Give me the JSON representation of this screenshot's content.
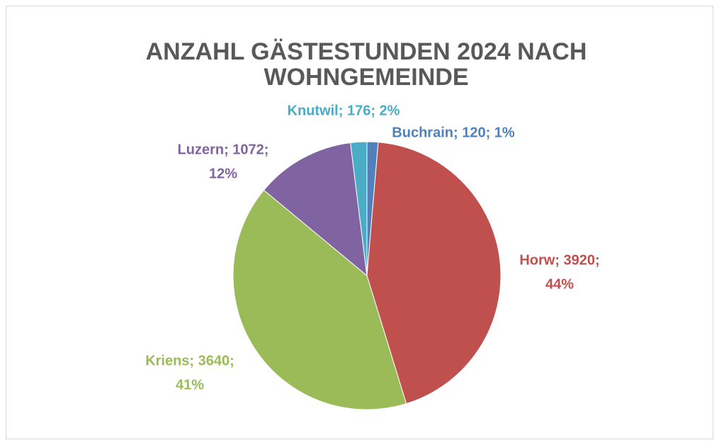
{
  "chart_data": {
    "type": "pie",
    "title": [
      "ANZAHL GÄSTESTUNDEN 2024 NACH",
      "WOHNGEMEINDE"
    ],
    "categories": [
      "Buchrain",
      "Horw",
      "Kriens",
      "Luzern",
      "Knutwil"
    ],
    "values": [
      120,
      3920,
      3640,
      1072,
      176
    ],
    "value_labels": [
      [
        "Buchrain; 120; 1%"
      ],
      [
        "Horw; 3920;",
        "44%"
      ],
      [
        "Kriens; 3640;",
        "41%"
      ],
      [
        "Luzern; 1072;",
        "12%"
      ],
      [
        "Knutwil; 176; 2%"
      ]
    ],
    "colors": [
      "#4f81bd",
      "#c0504d",
      "#9bbb59",
      "#8064a2",
      "#4bacc6"
    ],
    "start_angle": 0,
    "direction": "clockwise"
  }
}
